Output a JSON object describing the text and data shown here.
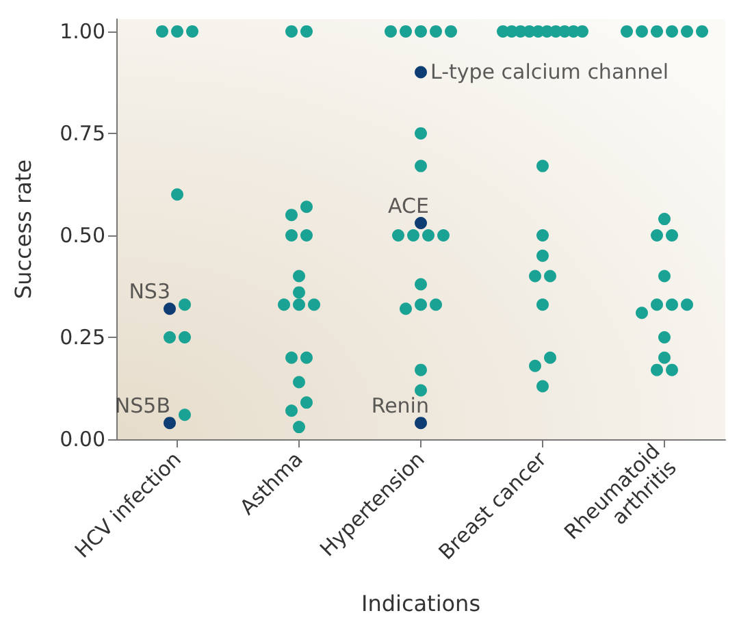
{
  "chart_data": {
    "type": "scatter",
    "xlabel": "Indications",
    "ylabel": "Success rate",
    "categories": [
      "HCV infection",
      "Asthma",
      "Hypertension",
      "Breast cancer",
      "Rheumatoid arthritis"
    ],
    "series": [
      {
        "color": "#1aa394",
        "x": [
          "HCV infection",
          "HCV infection",
          "HCV infection",
          "HCV infection",
          "HCV infection",
          "HCV infection",
          "HCV infection",
          "HCV infection",
          "Asthma",
          "Asthma",
          "Asthma",
          "Asthma",
          "Asthma",
          "Asthma",
          "Asthma",
          "Asthma",
          "Asthma",
          "Asthma",
          "Asthma",
          "Asthma",
          "Asthma",
          "Asthma",
          "Asthma",
          "Asthma",
          "Asthma",
          "Hypertension",
          "Hypertension",
          "Hypertension",
          "Hypertension",
          "Hypertension",
          "Hypertension",
          "Hypertension",
          "Hypertension",
          "Hypertension",
          "Hypertension",
          "Hypertension",
          "Hypertension",
          "Hypertension",
          "Hypertension",
          "Hypertension",
          "Hypertension",
          "Hypertension",
          "Breast cancer",
          "Breast cancer",
          "Breast cancer",
          "Breast cancer",
          "Breast cancer",
          "Breast cancer",
          "Breast cancer",
          "Breast cancer",
          "Breast cancer",
          "Breast cancer",
          "Breast cancer",
          "Breast cancer",
          "Breast cancer",
          "Breast cancer",
          "Breast cancer",
          "Breast cancer",
          "Breast cancer",
          "Breast cancer",
          "Breast cancer",
          "Rheumatoid arthritis",
          "Rheumatoid arthritis",
          "Rheumatoid arthritis",
          "Rheumatoid arthritis",
          "Rheumatoid arthritis",
          "Rheumatoid arthritis",
          "Rheumatoid arthritis",
          "Rheumatoid arthritis",
          "Rheumatoid arthritis",
          "Rheumatoid arthritis",
          "Rheumatoid arthritis",
          "Rheumatoid arthritis",
          "Rheumatoid arthritis",
          "Rheumatoid arthritis",
          "Rheumatoid arthritis",
          "Rheumatoid arthritis",
          "Rheumatoid arthritis",
          "Rheumatoid arthritis"
        ],
        "values": [
          1,
          1,
          1,
          0.6,
          0.33,
          0.25,
          0.25,
          0.06,
          1,
          1,
          0.57,
          0.55,
          0.5,
          0.5,
          0.4,
          0.36,
          0.33,
          0.33,
          0.33,
          0.2,
          0.2,
          0.14,
          0.09,
          0.07,
          0.03,
          1,
          1,
          1,
          1,
          1,
          0.75,
          0.67,
          0.5,
          0.5,
          0.5,
          0.5,
          0.38,
          0.33,
          0.33,
          0.32,
          0.17,
          0.12,
          1,
          1,
          1,
          1,
          1,
          1,
          1,
          1,
          1,
          1,
          0.67,
          0.5,
          0.45,
          0.4,
          0.4,
          0.33,
          0.2,
          0.18,
          0.13,
          1,
          1,
          1,
          1,
          1,
          1,
          0.54,
          0.5,
          0.5,
          0.4,
          0.33,
          0.33,
          0.33,
          0.31,
          0.25,
          0.2,
          0.17,
          0.17
        ]
      },
      {
        "color": "#0d3d73",
        "x": [
          "HCV infection",
          "HCV infection",
          "Hypertension",
          "Hypertension",
          "Hypertension"
        ],
        "values": [
          0.32,
          0.04,
          0.9,
          0.53,
          0.04
        ]
      }
    ],
    "annotations": [
      {
        "text": "NS3",
        "x": "HCV infection",
        "y": 0.32
      },
      {
        "text": "NS5B",
        "x": "HCV infection",
        "y": 0.04
      },
      {
        "text": "L-type calcium channel",
        "x": "Hypertension",
        "y": 0.9
      },
      {
        "text": "ACE",
        "x": "Hypertension",
        "y": 0.53
      },
      {
        "text": "Renin",
        "x": "Hypertension",
        "y": 0.04
      }
    ],
    "ylim": [
      0,
      1.03
    ],
    "yticks": [
      {
        "value": 0,
        "label": "0.00"
      },
      {
        "value": 0.25,
        "label": "0.25"
      },
      {
        "value": 0.5,
        "label": "0.50"
      },
      {
        "value": 0.75,
        "label": "0.75"
      },
      {
        "value": 1,
        "label": "1.00"
      }
    ],
    "grid": false,
    "marker": "circle"
  }
}
